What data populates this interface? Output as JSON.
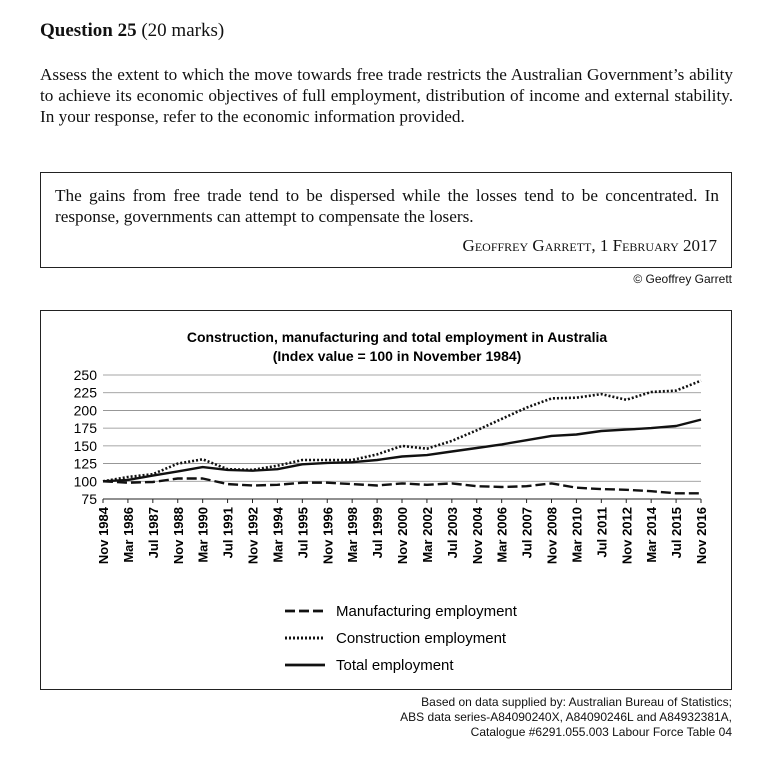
{
  "question": {
    "number_label": "Question 25",
    "marks": "(20 marks)",
    "prompt": "Assess the extent to which the move towards free trade restricts the Australian Government’s ability to achieve its economic objectives of full employment, distribution of income and external stability. In your response, refer to the economic information provided."
  },
  "quote": {
    "text": "The gains from free trade tend to be dispersed while the losses tend to be concentrated. In response, governments can attempt to compensate the losers.",
    "author": "Geoffrey Garrett, 1 February 2017",
    "copyright": "© Geoffrey Garrett"
  },
  "source": {
    "line1": "Based on data supplied by: Australian Bureau of Statistics;",
    "line2": "ABS data series-A84090240X, A84090246L and A84932381A,",
    "line3": "Catalogue #6291.055.003 Labour Force Table 04"
  },
  "chart_data": {
    "type": "line",
    "title": "Construction, manufacturing and total employment in Australia",
    "subtitle": "(Index value = 100 in November 1984)",
    "xlabel": "",
    "ylabel": "",
    "ylim": [
      75,
      250
    ],
    "yticks": [
      75,
      100,
      125,
      150,
      175,
      200,
      225,
      250
    ],
    "grid": true,
    "legend_position": "bottom-center",
    "x": [
      "Nov 1984",
      "Mar 1986",
      "Jul 1987",
      "Nov 1988",
      "Mar 1990",
      "Jul 1991",
      "Nov 1992",
      "Mar 1994",
      "Jul 1995",
      "Nov 1996",
      "Mar 1998",
      "Jul 1999",
      "Nov 2000",
      "Mar 2002",
      "Jul 2003",
      "Nov 2004",
      "Mar 2006",
      "Jul 2007",
      "Nov 2008",
      "Mar 2010",
      "Jul 2011",
      "Nov 2012",
      "Mar 2014",
      "Jul 2015",
      "Nov 2016"
    ],
    "series": [
      {
        "name": "Manufacturing employment",
        "style": "dashed",
        "values": [
          100,
          98,
          99,
          104,
          104,
          96,
          94,
          95,
          98,
          98,
          96,
          94,
          97,
          95,
          97,
          93,
          92,
          93,
          97,
          91,
          89,
          88,
          86,
          83,
          83
        ]
      },
      {
        "name": "Construction employment",
        "style": "dotted",
        "values": [
          100,
          106,
          110,
          125,
          131,
          117,
          116,
          122,
          130,
          130,
          130,
          138,
          150,
          146,
          157,
          172,
          188,
          204,
          217,
          218,
          223,
          215,
          226,
          228,
          242
        ]
      },
      {
        "name": "Total employment",
        "style": "solid",
        "values": [
          100,
          102,
          108,
          114,
          120,
          116,
          115,
          117,
          124,
          126,
          127,
          130,
          135,
          137,
          142,
          147,
          152,
          158,
          164,
          166,
          171,
          173,
          175,
          178,
          187
        ]
      }
    ]
  }
}
